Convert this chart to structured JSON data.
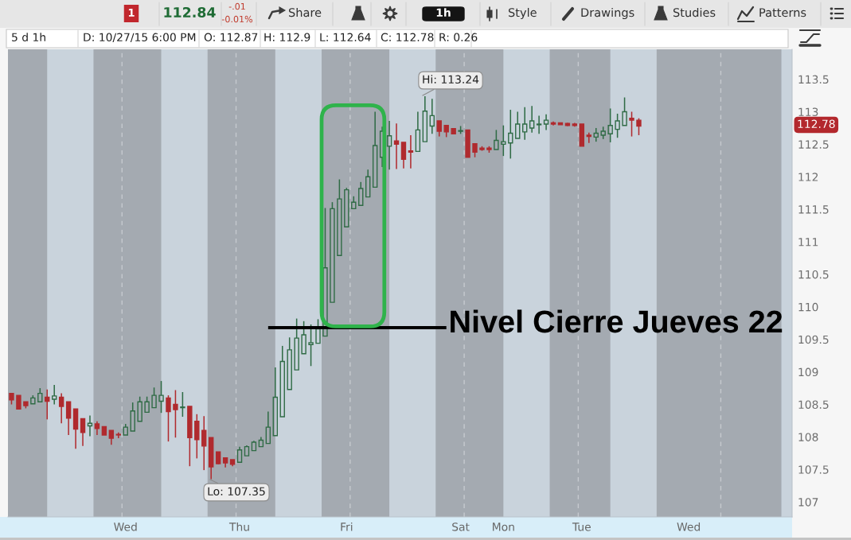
{
  "chart_data": {
    "type": "candlestick",
    "categories": [
      null,
      null,
      null,
      null,
      null,
      null,
      null,
      null,
      null,
      null,
      null,
      null,
      null,
      null,
      null,
      null,
      "Wed",
      null,
      null,
      null,
      null,
      null,
      null,
      null,
      null,
      null,
      null,
      null,
      null,
      null,
      null,
      null,
      "Thu",
      null,
      null,
      null,
      null,
      null,
      null,
      null,
      null,
      null,
      null,
      null,
      null,
      null,
      null,
      "Fri",
      null,
      null,
      null,
      null,
      null,
      null,
      null,
      null,
      null,
      null,
      null,
      null,
      null,
      null,
      null,
      "Sat",
      null,
      null,
      null,
      null,
      null,
      "Mon",
      null,
      null,
      null,
      null,
      null,
      null,
      null,
      null,
      null,
      null,
      "Tue",
      null,
      null,
      null,
      null,
      null,
      null,
      null,
      null,
      null,
      null,
      null,
      null,
      null,
      null,
      "Wed",
      null,
      null,
      null,
      null,
      null,
      null,
      null,
      null,
      null,
      null,
      null,
      null,
      null,
      null
    ],
    "ohlc": [
      [
        108.67,
        108.67,
        108.5,
        108.57
      ],
      [
        108.64,
        108.64,
        108.43,
        108.43
      ],
      [
        108.54,
        108.54,
        108.44,
        108.48
      ],
      [
        108.51,
        108.64,
        108.51,
        108.6
      ],
      [
        108.54,
        108.75,
        108.54,
        108.67
      ],
      [
        108.61,
        108.73,
        108.27,
        108.55
      ],
      [
        108.58,
        108.8,
        108.5,
        108.63
      ],
      [
        108.61,
        108.67,
        108.21,
        108.47
      ],
      [
        108.54,
        108.54,
        108.03,
        108.29
      ],
      [
        108.43,
        108.43,
        107.82,
        108.12
      ],
      [
        108.28,
        108.28,
        107.86,
        108.07
      ],
      [
        108.17,
        108.33,
        108.01,
        108.21
      ],
      [
        108.2,
        108.24,
        108.03,
        108.13
      ],
      [
        108.16,
        108.16,
        108.03,
        108.03
      ],
      [
        108.1,
        108.1,
        107.88,
        107.98
      ],
      [
        108.04,
        108.07,
        107.98,
        108.03
      ],
      [
        108.03,
        108.2,
        108.03,
        108.15
      ],
      [
        108.09,
        108.53,
        108.09,
        108.4
      ],
      [
        108.24,
        108.62,
        108.24,
        108.54
      ],
      [
        108.38,
        108.62,
        108.38,
        108.54
      ],
      [
        108.45,
        108.76,
        108.45,
        108.64
      ],
      [
        108.55,
        108.86,
        108.37,
        108.64
      ],
      [
        108.6,
        108.64,
        107.93,
        108.39
      ],
      [
        108.5,
        108.72,
        107.99,
        108.42
      ],
      [
        108.45,
        108.69,
        108.31,
        108.46
      ],
      [
        108.47,
        108.47,
        107.55,
        107.99
      ],
      [
        108.24,
        108.35,
        107.67,
        107.96
      ],
      [
        108.1,
        108.32,
        107.49,
        107.86
      ],
      [
        107.99,
        107.99,
        107.35,
        107.54
      ],
      [
        107.77,
        107.77,
        107.58,
        107.59
      ],
      [
        107.68,
        107.68,
        107.53,
        107.6
      ],
      [
        107.65,
        107.65,
        107.55,
        107.58
      ],
      [
        107.61,
        107.85,
        107.61,
        107.8
      ],
      [
        107.71,
        107.87,
        107.71,
        107.85
      ],
      [
        107.79,
        107.94,
        107.79,
        107.92
      ],
      [
        107.85,
        108.0,
        107.85,
        107.95
      ],
      [
        107.9,
        108.39,
        107.9,
        108.15
      ],
      [
        108.02,
        109.07,
        108.02,
        108.61
      ],
      [
        108.31,
        109.4,
        108.31,
        109.16
      ],
      [
        108.73,
        109.53,
        108.73,
        109.34
      ],
      [
        109.03,
        109.82,
        109.03,
        109.52
      ],
      [
        109.28,
        109.78,
        109.28,
        109.57
      ],
      [
        109.42,
        109.73,
        109.09,
        109.45
      ],
      [
        109.44,
        109.81,
        109.44,
        109.66
      ],
      [
        109.55,
        111.52,
        109.55,
        110.6
      ],
      [
        110.07,
        111.61,
        110.07,
        111.51
      ],
      [
        110.79,
        111.96,
        110.79,
        111.66
      ],
      [
        111.23,
        111.83,
        111.23,
        111.8
      ],
      [
        111.51,
        111.7,
        111.51,
        111.61
      ],
      [
        111.56,
        111.92,
        111.56,
        111.82
      ],
      [
        111.69,
        112.11,
        111.69,
        112.0
      ],
      [
        111.84,
        113.0,
        111.84,
        112.48
      ],
      [
        112.3,
        112.77,
        112.15,
        112.7
      ],
      [
        112.47,
        112.86,
        112.11,
        112.63
      ],
      [
        112.55,
        112.82,
        112.12,
        112.5
      ],
      [
        112.53,
        112.53,
        112.13,
        112.27
      ],
      [
        112.4,
        112.64,
        112.13,
        112.38
      ],
      [
        112.39,
        113.0,
        112.39,
        112.72
      ],
      [
        112.54,
        113.24,
        112.54,
        113.01
      ],
      [
        112.78,
        113.2,
        112.66,
        112.94
      ],
      [
        112.86,
        112.86,
        112.62,
        112.7
      ],
      [
        112.79,
        112.79,
        112.61,
        112.69
      ],
      [
        112.74,
        112.74,
        112.66,
        112.66
      ],
      [
        112.7,
        112.78,
        112.66,
        112.71
      ],
      [
        112.72,
        112.72,
        112.3,
        112.3
      ],
      [
        112.51,
        112.51,
        112.3,
        112.38
      ],
      [
        112.44,
        112.47,
        112.4,
        112.42
      ],
      [
        112.44,
        112.47,
        112.37,
        112.42
      ],
      [
        112.42,
        112.72,
        112.42,
        112.56
      ],
      [
        112.5,
        112.79,
        112.32,
        112.54
      ],
      [
        112.52,
        113.03,
        112.28,
        112.67
      ],
      [
        112.59,
        113.0,
        112.59,
        112.81
      ],
      [
        112.69,
        113.07,
        112.57,
        112.81
      ],
      [
        112.75,
        113.09,
        112.68,
        112.86
      ],
      [
        112.8,
        112.94,
        112.66,
        112.81
      ],
      [
        112.81,
        112.96,
        112.72,
        112.87
      ],
      [
        112.83,
        112.85,
        112.79,
        112.81
      ],
      [
        112.83,
        112.83,
        112.8,
        112.8
      ],
      [
        112.82,
        112.83,
        112.78,
        112.79
      ],
      [
        112.81,
        112.83,
        112.77,
        112.79
      ],
      [
        112.81,
        112.81,
        112.47,
        112.47
      ],
      [
        112.64,
        112.68,
        112.52,
        112.62
      ],
      [
        112.61,
        112.75,
        112.54,
        112.67
      ],
      [
        112.64,
        112.77,
        112.58,
        112.7
      ],
      [
        112.66,
        113.05,
        112.53,
        112.79
      ],
      [
        112.73,
        112.97,
        112.6,
        112.86
      ],
      [
        112.79,
        113.22,
        112.79,
        113.0
      ],
      [
        112.9,
        113.0,
        112.62,
        112.87
      ],
      [
        112.87,
        112.9,
        112.64,
        112.78
      ],
      null,
      null,
      null,
      null,
      null,
      null,
      null,
      null,
      null,
      null,
      null,
      null,
      null,
      null,
      null,
      null,
      null,
      null,
      null,
      null,
      null
    ],
    "colors": [
      "#b02a2e",
      "#b02a2e",
      "#b02a2e",
      "#2f6b45",
      "#2f6b45",
      "#b02a2e",
      "#2f6b45",
      "#b02a2e",
      "#b02a2e",
      "#b02a2e",
      "#b02a2e",
      "#2f6b45",
      "#b02a2e",
      "#b02a2e",
      "#b02a2e",
      "#b02a2e",
      "#2f6b45",
      "#2f6b45",
      "#2f6b45",
      "#2f6b45",
      "#2f6b45",
      "#2f6b45",
      "#b02a2e",
      "#b02a2e",
      "#2f6b45",
      "#b02a2e",
      "#b02a2e",
      "#b02a2e",
      "#b02a2e",
      "#b02a2e",
      "#b02a2e",
      "#b02a2e",
      "#2f6b45",
      "#2f6b45",
      "#2f6b45",
      "#2f6b45",
      "#2f6b45",
      "#2f6b45",
      "#2f6b45",
      "#2f6b45",
      "#2f6b45",
      "#2f6b45",
      "#2f6b45",
      "#2f6b45",
      "#2f6b45",
      "#2f6b45",
      "#2f6b45",
      "#2f6b45",
      "#2f6b45",
      "#2f6b45",
      "#2f6b45",
      "#2f6b45",
      "#2f6b45",
      "#2f6b45",
      "#b02a2e",
      "#b02a2e",
      "#b02a2e",
      "#2f6b45",
      "#2f6b45",
      "#2f6b45",
      "#b02a2e",
      "#b02a2e",
      "#b02a2e",
      "#2f6b45",
      "#b02a2e",
      "#b02a2e",
      "#b02a2e",
      "#b02a2e",
      "#2f6b45",
      "#2f6b45",
      "#2f6b45",
      "#2f6b45",
      "#2f6b45",
      "#2f6b45",
      "#2f6b45",
      "#2f6b45",
      "#b02a2e",
      "#b02a2e",
      "#b02a2e",
      "#b02a2e",
      "#b02a2e",
      "#b02a2e",
      "#2f6b45",
      "#2f6b45",
      "#2f6b45",
      "#2f6b45",
      "#2f6b45",
      "#b02a2e",
      "#b02a2e",
      null,
      null,
      null,
      null,
      null,
      null,
      null,
      null,
      null,
      null,
      null,
      null,
      null,
      null,
      null,
      null,
      null,
      null,
      null,
      null,
      null
    ],
    "series": [
      {
        "type": "line",
        "name": "Nivel Cierre Jueves 22",
        "color": "#000000",
        "values": [
          null,
          null,
          null,
          null,
          null,
          null,
          null,
          null,
          null,
          null,
          null,
          null,
          null,
          null,
          null,
          null,
          null,
          null,
          null,
          null,
          null,
          null,
          null,
          null,
          null,
          null,
          null,
          null,
          null,
          null,
          null,
          null,
          null,
          null,
          null,
          null,
          109.68,
          109.68,
          109.68,
          109.68,
          109.68,
          109.68,
          109.68,
          109.68,
          109.68,
          109.68,
          109.68,
          109.68,
          109.68,
          109.68,
          109.68,
          109.68,
          109.68,
          109.68,
          109.68,
          109.68,
          109.68,
          109.68,
          109.68,
          109.68,
          109.68,
          109.68,
          null,
          null,
          null,
          null,
          null,
          null,
          null,
          null,
          null,
          null,
          null,
          null,
          null,
          null,
          null,
          null,
          null,
          null,
          null,
          null,
          null,
          null,
          null,
          null,
          null,
          null,
          null,
          null,
          null,
          null,
          null,
          null,
          null,
          null,
          null,
          null,
          null,
          null,
          null,
          null,
          null,
          null,
          null,
          null,
          null,
          null,
          null,
          null
        ]
      }
    ],
    "ylim": [
      106.77,
      113.96
    ],
    "yticks": [
      107,
      107.5,
      108,
      108.5,
      109,
      109.5,
      110,
      110.5,
      111,
      111.5,
      112,
      112.5,
      113,
      113.5
    ],
    "annotations": [
      "1",
      "112.84",
      "-.01",
      "-0.01%",
      "Share",
      "1h",
      "Style",
      "Drawings",
      "Studies",
      "Patterns",
      "5 d 1h",
      "D: 10/27/15 6:00 PM",
      "O: 112.87",
      "H: 112.9",
      "L: 112.64",
      "C: 112.78",
      "R: 0.26",
      "Hi: 113.24",
      "Lo: 107.35",
      "112.78"
    ]
  }
}
